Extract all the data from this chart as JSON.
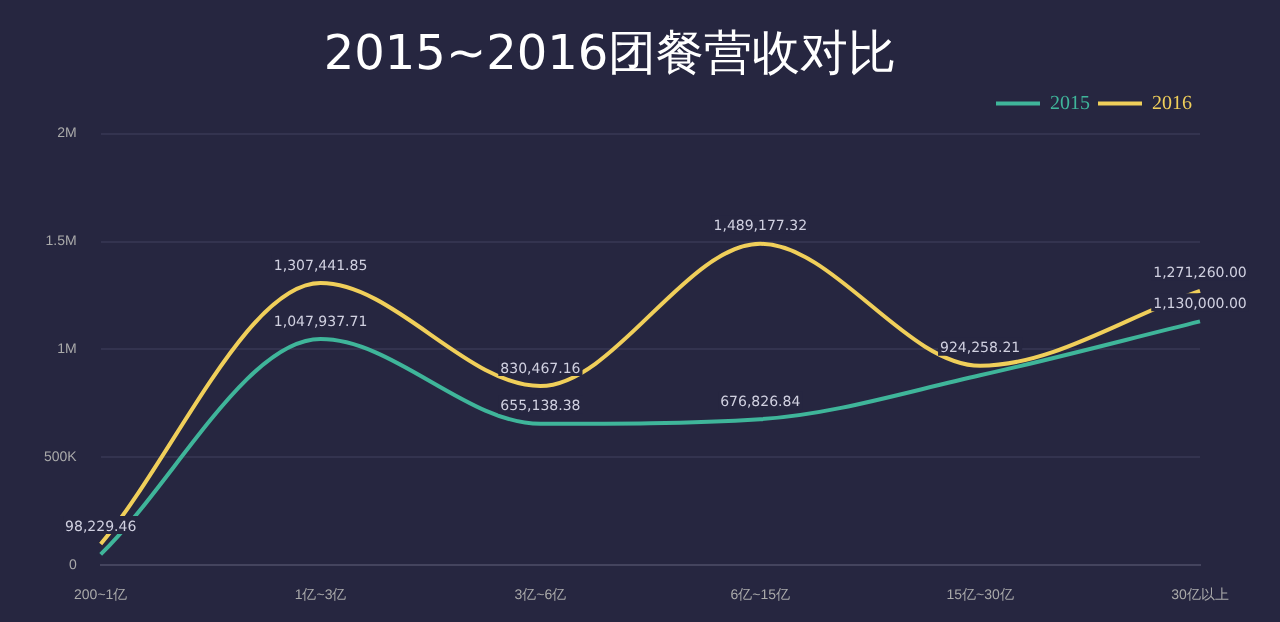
{
  "chart_data": {
    "type": "line",
    "title": "2015~2016团餐营收对比",
    "categories": [
      "200~1亿",
      "1亿~3亿",
      "3亿~6亿",
      "6亿~15亿",
      "15亿~30亿",
      "30亿以上"
    ],
    "series": [
      {
        "name": "2015",
        "color": "#3fb59a",
        "values": [
          50000,
          1047937.71,
          655138.38,
          676826.84,
          880000,
          1130000
        ],
        "value_labels": [
          null,
          "1,047,937.71",
          "655,138.38",
          "676,826.84",
          null,
          "1,130,000.00"
        ]
      },
      {
        "name": "2016",
        "color": "#f0cf5a",
        "values": [
          98229.46,
          1307441.85,
          830467.16,
          1489177.32,
          924258.21,
          1271260
        ],
        "value_labels": [
          "98,229.46",
          "1,307,441.85",
          "830,467.16",
          "1,489,177.32",
          "924,258.21",
          "1,271,260.00"
        ]
      }
    ],
    "ylim": [
      0,
      2000000
    ],
    "yticks": [
      {
        "value": 0,
        "label": "0"
      },
      {
        "value": 500000,
        "label": "500K"
      },
      {
        "value": 1000000,
        "label": "1M"
      },
      {
        "value": 1500000,
        "label": "1.5M"
      },
      {
        "value": 2000000,
        "label": "2M"
      }
    ],
    "grid": "y",
    "legend": "top right",
    "marker": "none"
  }
}
